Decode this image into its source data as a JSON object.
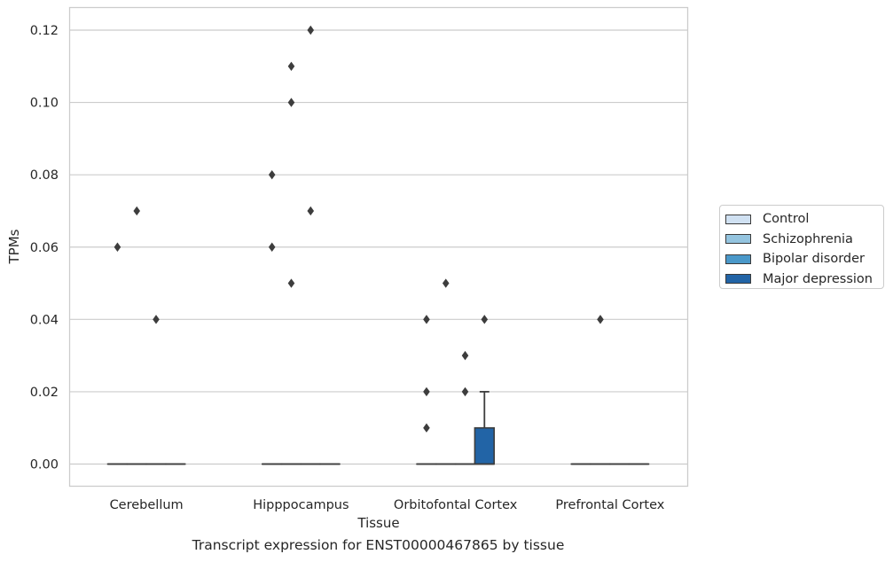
{
  "chart_data": {
    "type": "box",
    "title": "",
    "caption": "Transcript expression for ENST00000467865 by tissue",
    "xlabel": "Tissue",
    "ylabel": "TPMs",
    "ylim": [
      -0.006,
      0.126
    ],
    "yticks": [
      0.0,
      0.02,
      0.04,
      0.06,
      0.08,
      0.1,
      0.12
    ],
    "ytick_labels": [
      "0.00",
      "0.02",
      "0.04",
      "0.06",
      "0.08",
      "0.10",
      "0.12"
    ],
    "grid": "horizontal",
    "legend_position": "right",
    "categories": [
      "Cerebellum",
      "Hipppocampus",
      "Orbitofontal Cortex",
      "Prefrontal Cortex"
    ],
    "series": [
      {
        "name": "Control",
        "color": "#d0e1f2",
        "boxes": [
          {
            "q1": 0,
            "median": 0,
            "q3": 0,
            "whisker_low": 0,
            "whisker_high": 0,
            "outliers": [
              0.06
            ]
          },
          {
            "q1": 0,
            "median": 0,
            "q3": 0,
            "whisker_low": 0,
            "whisker_high": 0,
            "outliers": [
              0.06,
              0.08
            ]
          },
          {
            "q1": 0,
            "median": 0,
            "q3": 0,
            "whisker_low": 0,
            "whisker_high": 0,
            "outliers": [
              0.01,
              0.02,
              0.04
            ]
          },
          {
            "q1": 0,
            "median": 0,
            "q3": 0,
            "whisker_low": 0,
            "whisker_high": 0,
            "outliers": []
          }
        ]
      },
      {
        "name": "Schizophrenia",
        "color": "#94c4df",
        "boxes": [
          {
            "q1": 0,
            "median": 0,
            "q3": 0,
            "whisker_low": 0,
            "whisker_high": 0,
            "outliers": [
              0.07
            ]
          },
          {
            "q1": 0,
            "median": 0,
            "q3": 0,
            "whisker_low": 0,
            "whisker_high": 0,
            "outliers": [
              0.05,
              0.1,
              0.11
            ]
          },
          {
            "q1": 0,
            "median": 0,
            "q3": 0,
            "whisker_low": 0,
            "whisker_high": 0,
            "outliers": [
              0.05
            ]
          },
          {
            "q1": 0,
            "median": 0,
            "q3": 0,
            "whisker_low": 0,
            "whisker_high": 0,
            "outliers": [
              0.04
            ]
          }
        ]
      },
      {
        "name": "Bipolar disorder",
        "color": "#4a98c9",
        "boxes": [
          {
            "q1": 0,
            "median": 0,
            "q3": 0,
            "whisker_low": 0,
            "whisker_high": 0,
            "outliers": [
              0.04
            ]
          },
          {
            "q1": 0,
            "median": 0,
            "q3": 0,
            "whisker_low": 0,
            "whisker_high": 0,
            "outliers": [
              0.07,
              0.12
            ]
          },
          {
            "q1": 0,
            "median": 0,
            "q3": 0,
            "whisker_low": 0,
            "whisker_high": 0,
            "outliers": [
              0.02,
              0.03
            ]
          },
          {
            "q1": 0,
            "median": 0,
            "q3": 0,
            "whisker_low": 0,
            "whisker_high": 0,
            "outliers": []
          }
        ]
      },
      {
        "name": "Major depression",
        "color": "#2264a6",
        "boxes": [
          {
            "q1": 0,
            "median": 0,
            "q3": 0,
            "whisker_low": 0,
            "whisker_high": 0,
            "outliers": []
          },
          {
            "q1": 0,
            "median": 0,
            "q3": 0,
            "whisker_low": 0,
            "whisker_high": 0,
            "outliers": []
          },
          {
            "q1": 0,
            "median": 0,
            "q3": 0.01,
            "whisker_low": 0,
            "whisker_high": 0.02,
            "outliers": [
              0.04
            ]
          },
          {
            "q1": 0,
            "median": 0,
            "q3": 0,
            "whisker_low": 0,
            "whisker_high": 0,
            "outliers": []
          }
        ]
      }
    ]
  }
}
